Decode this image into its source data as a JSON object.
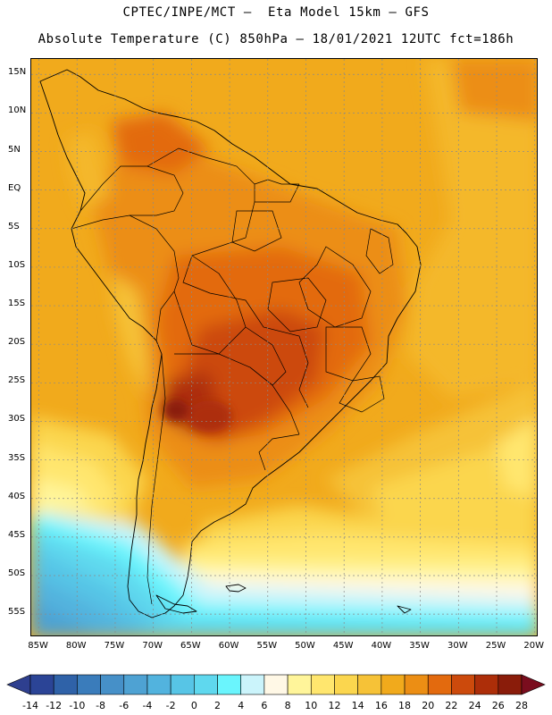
{
  "title": {
    "line1": "CPTEC/INPE/MCT –  Eta Model 15km – GFS",
    "line2": "Absolute Temperature (C) 850hPa – 18/01/2021 12UTC fct=186h"
  },
  "map": {
    "region": "South America",
    "variable": "Absolute Temperature",
    "unit": "C",
    "level": "850hPa",
    "lat_range": [
      -58,
      17
    ],
    "lon_range": [
      -86,
      -19.5
    ],
    "lat_ticks": [
      "15N",
      "10N",
      "5N",
      "EQ",
      "5S",
      "10S",
      "15S",
      "20S",
      "25S",
      "30S",
      "35S",
      "40S",
      "45S",
      "50S",
      "55S"
    ],
    "lat_values": [
      15,
      10,
      5,
      0,
      -5,
      -10,
      -15,
      -20,
      -25,
      -30,
      -35,
      -40,
      -45,
      -50,
      -55
    ],
    "lon_ticks": [
      "85W",
      "80W",
      "75W",
      "70W",
      "65W",
      "60W",
      "55W",
      "50W",
      "45W",
      "40W",
      "35W",
      "30W",
      "25W",
      "20W"
    ],
    "lon_values": [
      -85,
      -80,
      -75,
      -70,
      -65,
      -60,
      -55,
      -50,
      -45,
      -40,
      -35,
      -30,
      -25,
      -20
    ]
  },
  "colorbar": {
    "labels": [
      "-14",
      "-12",
      "-10",
      "-8",
      "-6",
      "-4",
      "-2",
      "0",
      "2",
      "4",
      "6",
      "8",
      "10",
      "12",
      "14",
      "16",
      "18",
      "20",
      "22",
      "24",
      "26",
      "28"
    ],
    "colors": [
      "#2b4496",
      "#2f62a8",
      "#3a7cbb",
      "#4690c8",
      "#4ea2d3",
      "#52b3de",
      "#57c5e6",
      "#5fd8ee",
      "#6af5fd",
      "#cbf4fb",
      "#fff8e6",
      "#fff59a",
      "#ffe66e",
      "#fbd64e",
      "#f6c237",
      "#f1aa1c",
      "#ec8e14",
      "#e36a0e",
      "#cc4a0c",
      "#ad2e09",
      "#8a1c0a"
    ],
    "under_color": "#2e3f8f",
    "over_color": "#7a0d1e"
  }
}
